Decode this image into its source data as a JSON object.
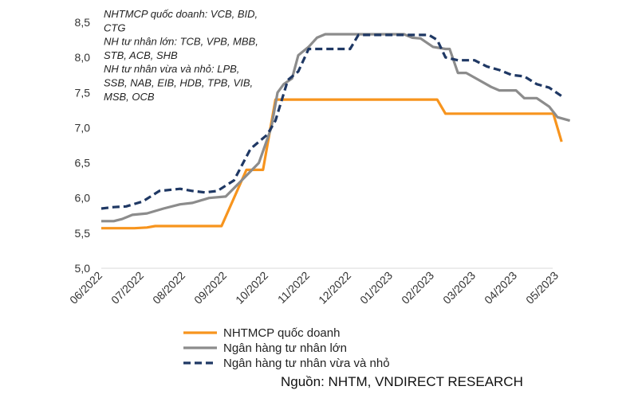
{
  "chart_data": {
    "type": "line",
    "x": [
      "06/2022",
      "07/2022",
      "08/2022",
      "09/2022",
      "10/2022",
      "11/2022",
      "12/2022",
      "01/2023",
      "02/2023",
      "03/2023",
      "04/2023",
      "05/2023"
    ],
    "ylim": [
      5.0,
      8.5
    ],
    "yticks": [
      "5,0",
      "5,5",
      "6,0",
      "6,5",
      "7,0",
      "7,5",
      "8,0",
      "8,5"
    ],
    "grid": false,
    "legend_position": "bottom",
    "annotation_lines": [
      "NHTMCP quốc doanh: VCB, BID,",
      "CTG",
      "NH tư nhân lớn: TCB, VPB, MBB,",
      "STB, ACB, SHB",
      "NH tư nhân vừa và nhỏ: LPB,",
      "SSB, NAB, EIB, HDB, TPB, VIB,",
      "MSB, OCB"
    ],
    "series": [
      {
        "name": "NHTMCP quốc doanh",
        "color": "#F7941D",
        "dash": "solid",
        "points": [
          [
            0,
            5.57
          ],
          [
            0.8,
            5.57
          ],
          [
            1.1,
            5.58
          ],
          [
            1.3,
            5.6
          ],
          [
            2.9,
            5.6
          ],
          [
            3.5,
            6.4
          ],
          [
            3.9,
            6.4
          ],
          [
            4.2,
            7.4
          ],
          [
            8.1,
            7.4
          ],
          [
            8.3,
            7.2
          ],
          [
            10.9,
            7.2
          ],
          [
            11.1,
            6.8
          ]
        ]
      },
      {
        "name": "Ngân hàng tư nhân lớn",
        "color": "#8C8C8C",
        "dash": "solid",
        "points": [
          [
            0,
            5.67
          ],
          [
            0.3,
            5.67
          ],
          [
            0.5,
            5.7
          ],
          [
            0.75,
            5.76
          ],
          [
            1.1,
            5.78
          ],
          [
            1.5,
            5.85
          ],
          [
            1.9,
            5.91
          ],
          [
            2.2,
            5.93
          ],
          [
            2.6,
            6.0
          ],
          [
            3.0,
            6.02
          ],
          [
            3.3,
            6.2
          ],
          [
            3.8,
            6.5
          ],
          [
            4.1,
            7.0
          ],
          [
            4.25,
            7.5
          ],
          [
            4.4,
            7.62
          ],
          [
            4.6,
            7.7
          ],
          [
            4.75,
            8.03
          ],
          [
            5.0,
            8.15
          ],
          [
            5.2,
            8.28
          ],
          [
            5.4,
            8.33
          ],
          [
            6.6,
            8.33
          ],
          [
            7.3,
            8.33
          ],
          [
            7.5,
            8.28
          ],
          [
            7.7,
            8.27
          ],
          [
            8.0,
            8.15
          ],
          [
            8.3,
            8.12
          ],
          [
            8.4,
            8.12
          ],
          [
            8.6,
            7.78
          ],
          [
            8.8,
            7.78
          ],
          [
            9.1,
            7.68
          ],
          [
            9.4,
            7.58
          ],
          [
            9.6,
            7.53
          ],
          [
            10.0,
            7.53
          ],
          [
            10.2,
            7.42
          ],
          [
            10.5,
            7.42
          ],
          [
            10.8,
            7.3
          ],
          [
            11.0,
            7.15
          ],
          [
            11.3,
            7.1
          ]
        ]
      },
      {
        "name": "Ngân hàng tư nhân vừa và nhỏ",
        "color": "#1F3864",
        "dash": "dashed",
        "points": [
          [
            0,
            5.85
          ],
          [
            0.3,
            5.87
          ],
          [
            0.6,
            5.88
          ],
          [
            1.0,
            5.95
          ],
          [
            1.4,
            6.1
          ],
          [
            1.9,
            6.13
          ],
          [
            2.2,
            6.1
          ],
          [
            2.5,
            6.08
          ],
          [
            2.8,
            6.1
          ],
          [
            3.2,
            6.25
          ],
          [
            3.6,
            6.7
          ],
          [
            4.0,
            6.9
          ],
          [
            4.2,
            7.1
          ],
          [
            4.5,
            7.68
          ],
          [
            4.75,
            7.8
          ],
          [
            5.0,
            8.12
          ],
          [
            6.0,
            8.12
          ],
          [
            6.2,
            8.32
          ],
          [
            7.9,
            8.32
          ],
          [
            8.1,
            8.25
          ],
          [
            8.3,
            8.0
          ],
          [
            8.6,
            7.96
          ],
          [
            9.0,
            7.96
          ],
          [
            9.3,
            7.87
          ],
          [
            9.6,
            7.82
          ],
          [
            9.9,
            7.75
          ],
          [
            10.2,
            7.73
          ],
          [
            10.5,
            7.62
          ],
          [
            10.8,
            7.57
          ],
          [
            11.1,
            7.45
          ]
        ]
      }
    ]
  },
  "source_text": "Nguồn: NHTM, VNDIRECT RESEARCH"
}
